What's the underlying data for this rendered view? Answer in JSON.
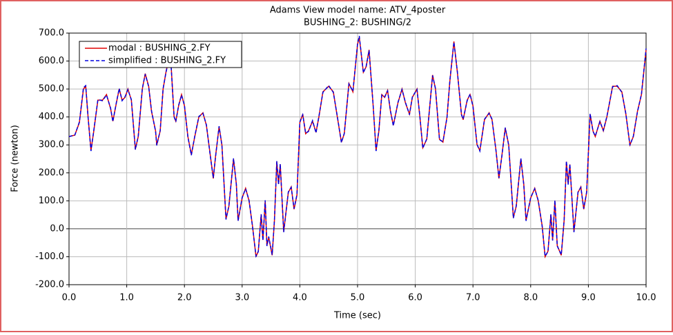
{
  "chart_data": {
    "type": "line",
    "title": "Adams View model name: ATV_4poster",
    "subtitle": "BUSHING_2: BUSHING/2",
    "x_label": "Time (sec)",
    "y_label": "Force (newton)",
    "xlim": [
      0,
      10
    ],
    "ylim": [
      -200,
      700
    ],
    "xticks": [
      {
        "value": 0,
        "label": "0.0"
      },
      {
        "value": 1,
        "label": "1.0"
      },
      {
        "value": 2,
        "label": "2.0"
      },
      {
        "value": 3,
        "label": "3.0"
      },
      {
        "value": 4,
        "label": "4.0"
      },
      {
        "value": 5,
        "label": "5.0"
      },
      {
        "value": 6,
        "label": "6.0"
      },
      {
        "value": 7,
        "label": "7.0"
      },
      {
        "value": 8,
        "label": "8.0"
      },
      {
        "value": 9,
        "label": "9.0"
      },
      {
        "value": 10,
        "label": "10.0"
      }
    ],
    "yticks": [
      {
        "value": -200,
        "label": "-200.0"
      },
      {
        "value": -100,
        "label": "-100.0"
      },
      {
        "value": 0,
        "label": "0.0"
      },
      {
        "value": 100,
        "label": "100.0"
      },
      {
        "value": 200,
        "label": "200.0"
      },
      {
        "value": 300,
        "label": "300.0"
      },
      {
        "value": 400,
        "label": "400.0"
      },
      {
        "value": 500,
        "label": "500.0"
      },
      {
        "value": 600,
        "label": "600.0"
      },
      {
        "value": 700,
        "label": "700.0"
      }
    ],
    "grid": true,
    "legend": "upper left",
    "x": [
      0,
      0.1,
      0.18,
      0.25,
      0.29,
      0.33,
      0.38,
      0.43,
      0.5,
      0.58,
      0.65,
      0.72,
      0.76,
      0.82,
      0.87,
      0.92,
      0.97,
      1.02,
      1.08,
      1.15,
      1.2,
      1.27,
      1.32,
      1.38,
      1.43,
      1.5,
      1.52,
      1.58,
      1.63,
      1.68,
      1.72,
      1.77,
      1.82,
      1.85,
      1.9,
      1.95,
      2.0,
      2.06,
      2.12,
      2.18,
      2.25,
      2.32,
      2.38,
      2.45,
      2.5,
      2.54,
      2.6,
      2.65,
      2.72,
      2.77,
      2.85,
      2.9,
      2.93,
      3.0,
      3.06,
      3.12,
      3.18,
      3.24,
      3.28,
      3.33,
      3.36,
      3.4,
      3.43,
      3.46,
      3.52,
      3.56,
      3.6,
      3.63,
      3.66,
      3.72,
      3.8,
      3.85,
      3.9,
      3.95,
      4.0,
      4.05,
      4.1,
      4.15,
      4.22,
      4.28,
      4.33,
      4.4,
      4.5,
      4.58,
      4.65,
      4.72,
      4.77,
      4.85,
      4.92,
      5.0,
      5.03,
      5.1,
      5.15,
      5.2,
      5.27,
      5.32,
      5.37,
      5.42,
      5.47,
      5.52,
      5.57,
      5.62,
      5.7,
      5.77,
      5.83,
      5.9,
      5.95,
      6.03,
      6.08,
      6.13,
      6.2,
      6.3,
      6.35,
      6.42,
      6.48,
      6.55,
      6.6,
      6.67,
      6.73,
      6.8,
      6.83,
      6.9,
      6.95,
      7.0,
      7.07,
      7.12,
      7.2,
      7.28,
      7.33,
      7.4,
      7.45,
      7.5,
      7.56,
      7.62,
      7.7,
      7.75,
      7.83,
      7.88,
      7.92,
      8.0,
      8.07,
      8.13,
      8.2,
      8.25,
      8.3,
      8.35,
      8.38,
      8.42,
      8.46,
      8.53,
      8.58,
      8.62,
      8.65,
      8.68,
      8.75,
      8.82,
      8.87,
      8.92,
      8.97,
      9.03,
      9.08,
      9.12,
      9.2,
      9.26,
      9.32,
      9.42,
      9.5,
      9.58,
      9.65,
      9.72,
      9.78,
      9.85,
      9.92,
      10.0
    ],
    "series": [
      {
        "name": "modal : BUSHING_2.FY",
        "color": "#e00000",
        "line_style": "solid",
        "values": [
          330,
          335,
          380,
          500,
          510,
          400,
          280,
          350,
          460,
          460,
          480,
          430,
          385,
          450,
          500,
          460,
          470,
          500,
          460,
          285,
          330,
          500,
          555,
          510,
          420,
          350,
          300,
          350,
          500,
          560,
          600,
          580,
          400,
          385,
          440,
          480,
          440,
          330,
          265,
          330,
          400,
          415,
          370,
          260,
          180,
          260,
          365,
          300,
          35,
          80,
          250,
          160,
          30,
          110,
          145,
          100,
          10,
          -100,
          -80,
          50,
          -40,
          100,
          -60,
          -30,
          -95,
          30,
          240,
          160,
          230,
          -10,
          130,
          150,
          70,
          120,
          380,
          410,
          340,
          350,
          385,
          345,
          400,
          490,
          510,
          490,
          400,
          310,
          340,
          520,
          490,
          660,
          685,
          560,
          580,
          640,
          440,
          280,
          350,
          480,
          470,
          495,
          420,
          370,
          450,
          500,
          450,
          410,
          470,
          500,
          400,
          290,
          320,
          550,
          500,
          320,
          310,
          400,
          530,
          670,
          560,
          410,
          390,
          460,
          480,
          440,
          300,
          280,
          390,
          415,
          390,
          280,
          180,
          260,
          360,
          300,
          40,
          80,
          250,
          160,
          30,
          110,
          145,
          100,
          10,
          -100,
          -80,
          50,
          -40,
          100,
          -60,
          -95,
          30,
          240,
          160,
          230,
          -10,
          130,
          150,
          70,
          130,
          410,
          350,
          330,
          385,
          350,
          400,
          510,
          510,
          490,
          410,
          300,
          330,
          420,
          480,
          640
        ]
      },
      {
        "name": "simplified : BUSHING_2.FY",
        "color": "#0000e0",
        "line_style": "dashed",
        "values": [
          330,
          335,
          382,
          505,
          512,
          398,
          278,
          352,
          462,
          458,
          478,
          432,
          383,
          452,
          502,
          458,
          472,
          498,
          462,
          283,
          332,
          502,
          553,
          508,
          422,
          348,
          298,
          352,
          502,
          558,
          598,
          578,
          402,
          383,
          442,
          478,
          442,
          328,
          263,
          332,
          402,
          413,
          372,
          258,
          182,
          258,
          367,
          298,
          33,
          82,
          252,
          158,
          28,
          112,
          143,
          102,
          8,
          -98,
          -82,
          52,
          -42,
          102,
          -62,
          -28,
          -93,
          32,
          242,
          158,
          232,
          -12,
          132,
          148,
          72,
          122,
          382,
          408,
          342,
          348,
          387,
          343,
          402,
          488,
          512,
          488,
          402,
          308,
          342,
          518,
          492,
          662,
          690,
          558,
          582,
          638,
          442,
          278,
          352,
          478,
          472,
          493,
          422,
          368,
          452,
          498,
          452,
          408,
          472,
          498,
          402,
          288,
          322,
          548,
          502,
          318,
          312,
          398,
          532,
          668,
          562,
          408,
          392,
          458,
          482,
          438,
          302,
          278,
          392,
          413,
          392,
          278,
          182,
          258,
          362,
          298,
          38,
          82,
          252,
          158,
          28,
          112,
          143,
          102,
          8,
          -98,
          -82,
          52,
          -42,
          102,
          -62,
          -93,
          32,
          242,
          158,
          232,
          -12,
          132,
          148,
          72,
          132,
          412,
          348,
          332,
          383,
          352,
          402,
          508,
          512,
          488,
          412,
          298,
          332,
          418,
          482,
          645
        ]
      }
    ]
  }
}
